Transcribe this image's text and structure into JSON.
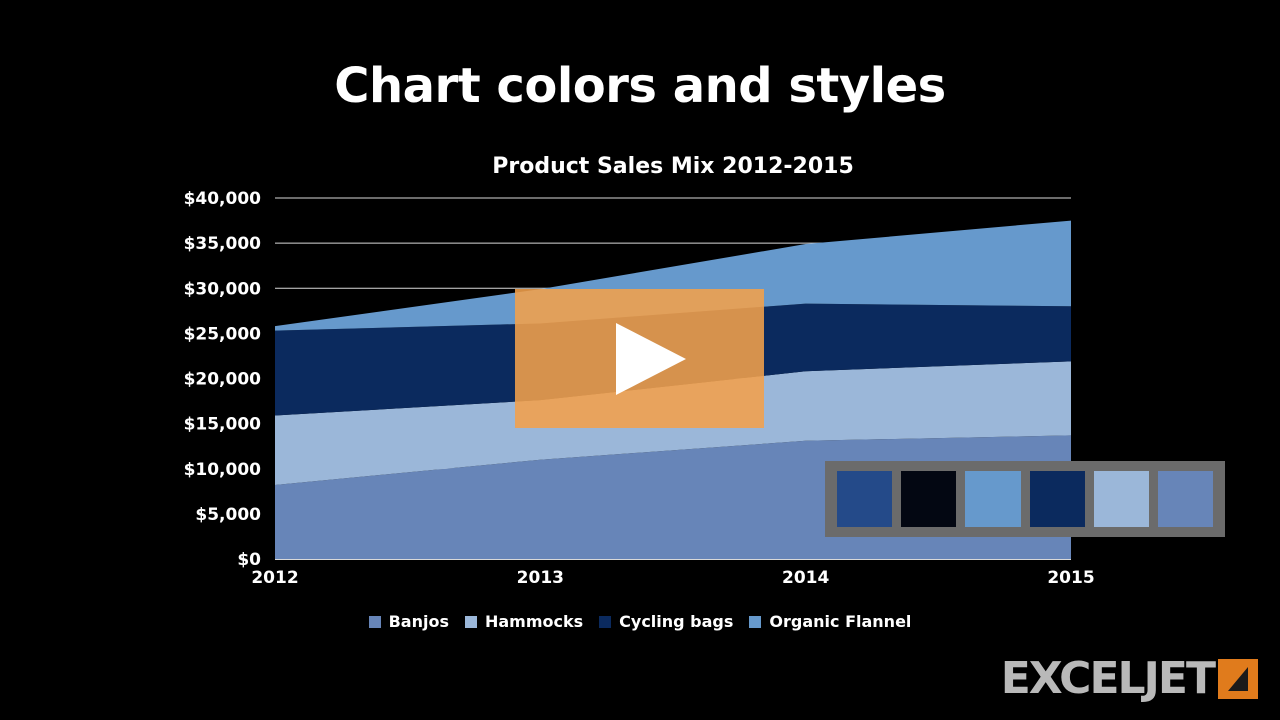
{
  "slide": {
    "title": "Chart colors and styles"
  },
  "chart_data": {
    "type": "area",
    "stacked": true,
    "title": "Product Sales Mix 2012-2015",
    "xlabel": "",
    "ylabel": "",
    "x": [
      "2012",
      "2013",
      "2014",
      "2015"
    ],
    "ylim": [
      0,
      40000
    ],
    "yticks": [
      "$0",
      "$5,000",
      "$10,000",
      "$15,000",
      "$20,000",
      "$25,000",
      "$30,000",
      "$35,000",
      "$40,000"
    ],
    "grid": true,
    "legend_position": "bottom",
    "series": [
      {
        "name": "Banjos",
        "values": [
          8200,
          11000,
          13100,
          13700
        ],
        "color": "#6785b8"
      },
      {
        "name": "Hammocks",
        "values": [
          7700,
          6600,
          7700,
          8200
        ],
        "color": "#9bb7d9"
      },
      {
        "name": "Cycling bags",
        "values": [
          9400,
          8500,
          7500,
          6100
        ],
        "color": "#0b2a5e"
      },
      {
        "name": "Organic Flannel",
        "values": [
          500,
          3800,
          6600,
          9500
        ],
        "color": "#6699cc"
      }
    ]
  },
  "palette": {
    "colors": [
      "#244a89",
      "#030712",
      "#6699cc",
      "#0b2a5e",
      "#9bb7d9",
      "#6785b8"
    ]
  },
  "logo": {
    "text": "EXCELJET",
    "colors": {
      "text": "#b9b9b9",
      "mark": "#e07b1c"
    }
  },
  "play_button": {
    "icon": "play-icon",
    "color": "#f2a14b"
  }
}
